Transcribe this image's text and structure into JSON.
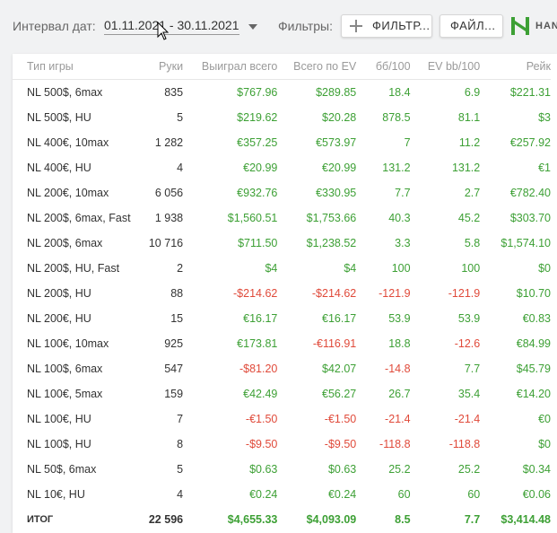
{
  "toolbar": {
    "date_label": "Интервал дат:",
    "date_range": "01.11.2021 - 30.11.2021",
    "filters_label": "Фильтры:",
    "filter_button": "ФИЛЬТР...",
    "files_button": "ФАЙЛ...",
    "logo_text": "HAN"
  },
  "table": {
    "columns": [
      "Тип игры",
      "Руки",
      "Выиграл всего",
      "Всего по EV",
      "бб/100",
      "EV bb/100",
      "Рейк"
    ],
    "rows": [
      {
        "game": "NL 500$, 6max",
        "hands": "835",
        "won": "$767.96",
        "ev": "$289.85",
        "bb": "18.4",
        "evbb": "6.9",
        "rake": "$221.31"
      },
      {
        "game": "NL 500$, HU",
        "hands": "5",
        "won": "$219.62",
        "ev": "$20.28",
        "bb": "878.5",
        "evbb": "81.1",
        "rake": "$3"
      },
      {
        "game": "NL 400€, 10max",
        "hands": "1 282",
        "won": "€357.25",
        "ev": "€573.97",
        "bb": "7",
        "evbb": "11.2",
        "rake": "€257.92"
      },
      {
        "game": "NL 400€, HU",
        "hands": "4",
        "won": "€20.99",
        "ev": "€20.99",
        "bb": "131.2",
        "evbb": "131.2",
        "rake": "€1"
      },
      {
        "game": "NL 200€, 10max",
        "hands": "6 056",
        "won": "€932.76",
        "ev": "€330.95",
        "bb": "7.7",
        "evbb": "2.7",
        "rake": "€782.40"
      },
      {
        "game": "NL 200$, 6max, Fast",
        "hands": "1 938",
        "won": "$1,560.51",
        "ev": "$1,753.66",
        "bb": "40.3",
        "evbb": "45.2",
        "rake": "$303.70"
      },
      {
        "game": "NL 200$, 6max",
        "hands": "10 716",
        "won": "$711.50",
        "ev": "$1,238.52",
        "bb": "3.3",
        "evbb": "5.8",
        "rake": "$1,574.10"
      },
      {
        "game": "NL 200$, HU, Fast",
        "hands": "2",
        "won": "$4",
        "ev": "$4",
        "bb": "100",
        "evbb": "100",
        "rake": "$0"
      },
      {
        "game": "NL 200$, HU",
        "hands": "88",
        "won": "-$214.62",
        "ev": "-$214.62",
        "bb": "-121.9",
        "evbb": "-121.9",
        "rake": "$10.70"
      },
      {
        "game": "NL 200€, HU",
        "hands": "15",
        "won": "€16.17",
        "ev": "€16.17",
        "bb": "53.9",
        "evbb": "53.9",
        "rake": "€0.83"
      },
      {
        "game": "NL 100€, 10max",
        "hands": "925",
        "won": "€173.81",
        "ev": "-€116.91",
        "bb": "18.8",
        "evbb": "-12.6",
        "rake": "€84.99"
      },
      {
        "game": "NL 100$, 6max",
        "hands": "547",
        "won": "-$81.20",
        "ev": "$42.07",
        "bb": "-14.8",
        "evbb": "7.7",
        "rake": "$45.79"
      },
      {
        "game": "NL 100€, 5max",
        "hands": "159",
        "won": "€42.49",
        "ev": "€56.27",
        "bb": "26.7",
        "evbb": "35.4",
        "rake": "€14.20"
      },
      {
        "game": "NL 100€, HU",
        "hands": "7",
        "won": "-€1.50",
        "ev": "-€1.50",
        "bb": "-21.4",
        "evbb": "-21.4",
        "rake": "€0"
      },
      {
        "game": "NL 100$, HU",
        "hands": "8",
        "won": "-$9.50",
        "ev": "-$9.50",
        "bb": "-118.8",
        "evbb": "-118.8",
        "rake": "$0"
      },
      {
        "game": "NL 50$, 6max",
        "hands": "5",
        "won": "$0.63",
        "ev": "$0.63",
        "bb": "25.2",
        "evbb": "25.2",
        "rake": "$0.34"
      },
      {
        "game": "NL 10€, HU",
        "hands": "4",
        "won": "€0.24",
        "ev": "€0.24",
        "bb": "60",
        "evbb": "60",
        "rake": "€0.06"
      }
    ],
    "total": {
      "game": "ИТОГ",
      "hands": "22 596",
      "won": "$4,655.33",
      "ev": "$4,093.09",
      "bb": "8.5",
      "evbb": "7.7",
      "rake": "$3,414.48"
    }
  },
  "colors": {
    "positive": "#3da035",
    "negative": "#e04a3a",
    "logo": "#3da035"
  },
  "icons": {
    "dropdown": "chevron-down-icon",
    "add": "plus-icon",
    "cursor": "mouse-pointer-icon",
    "logo": "hm-logo-icon"
  }
}
